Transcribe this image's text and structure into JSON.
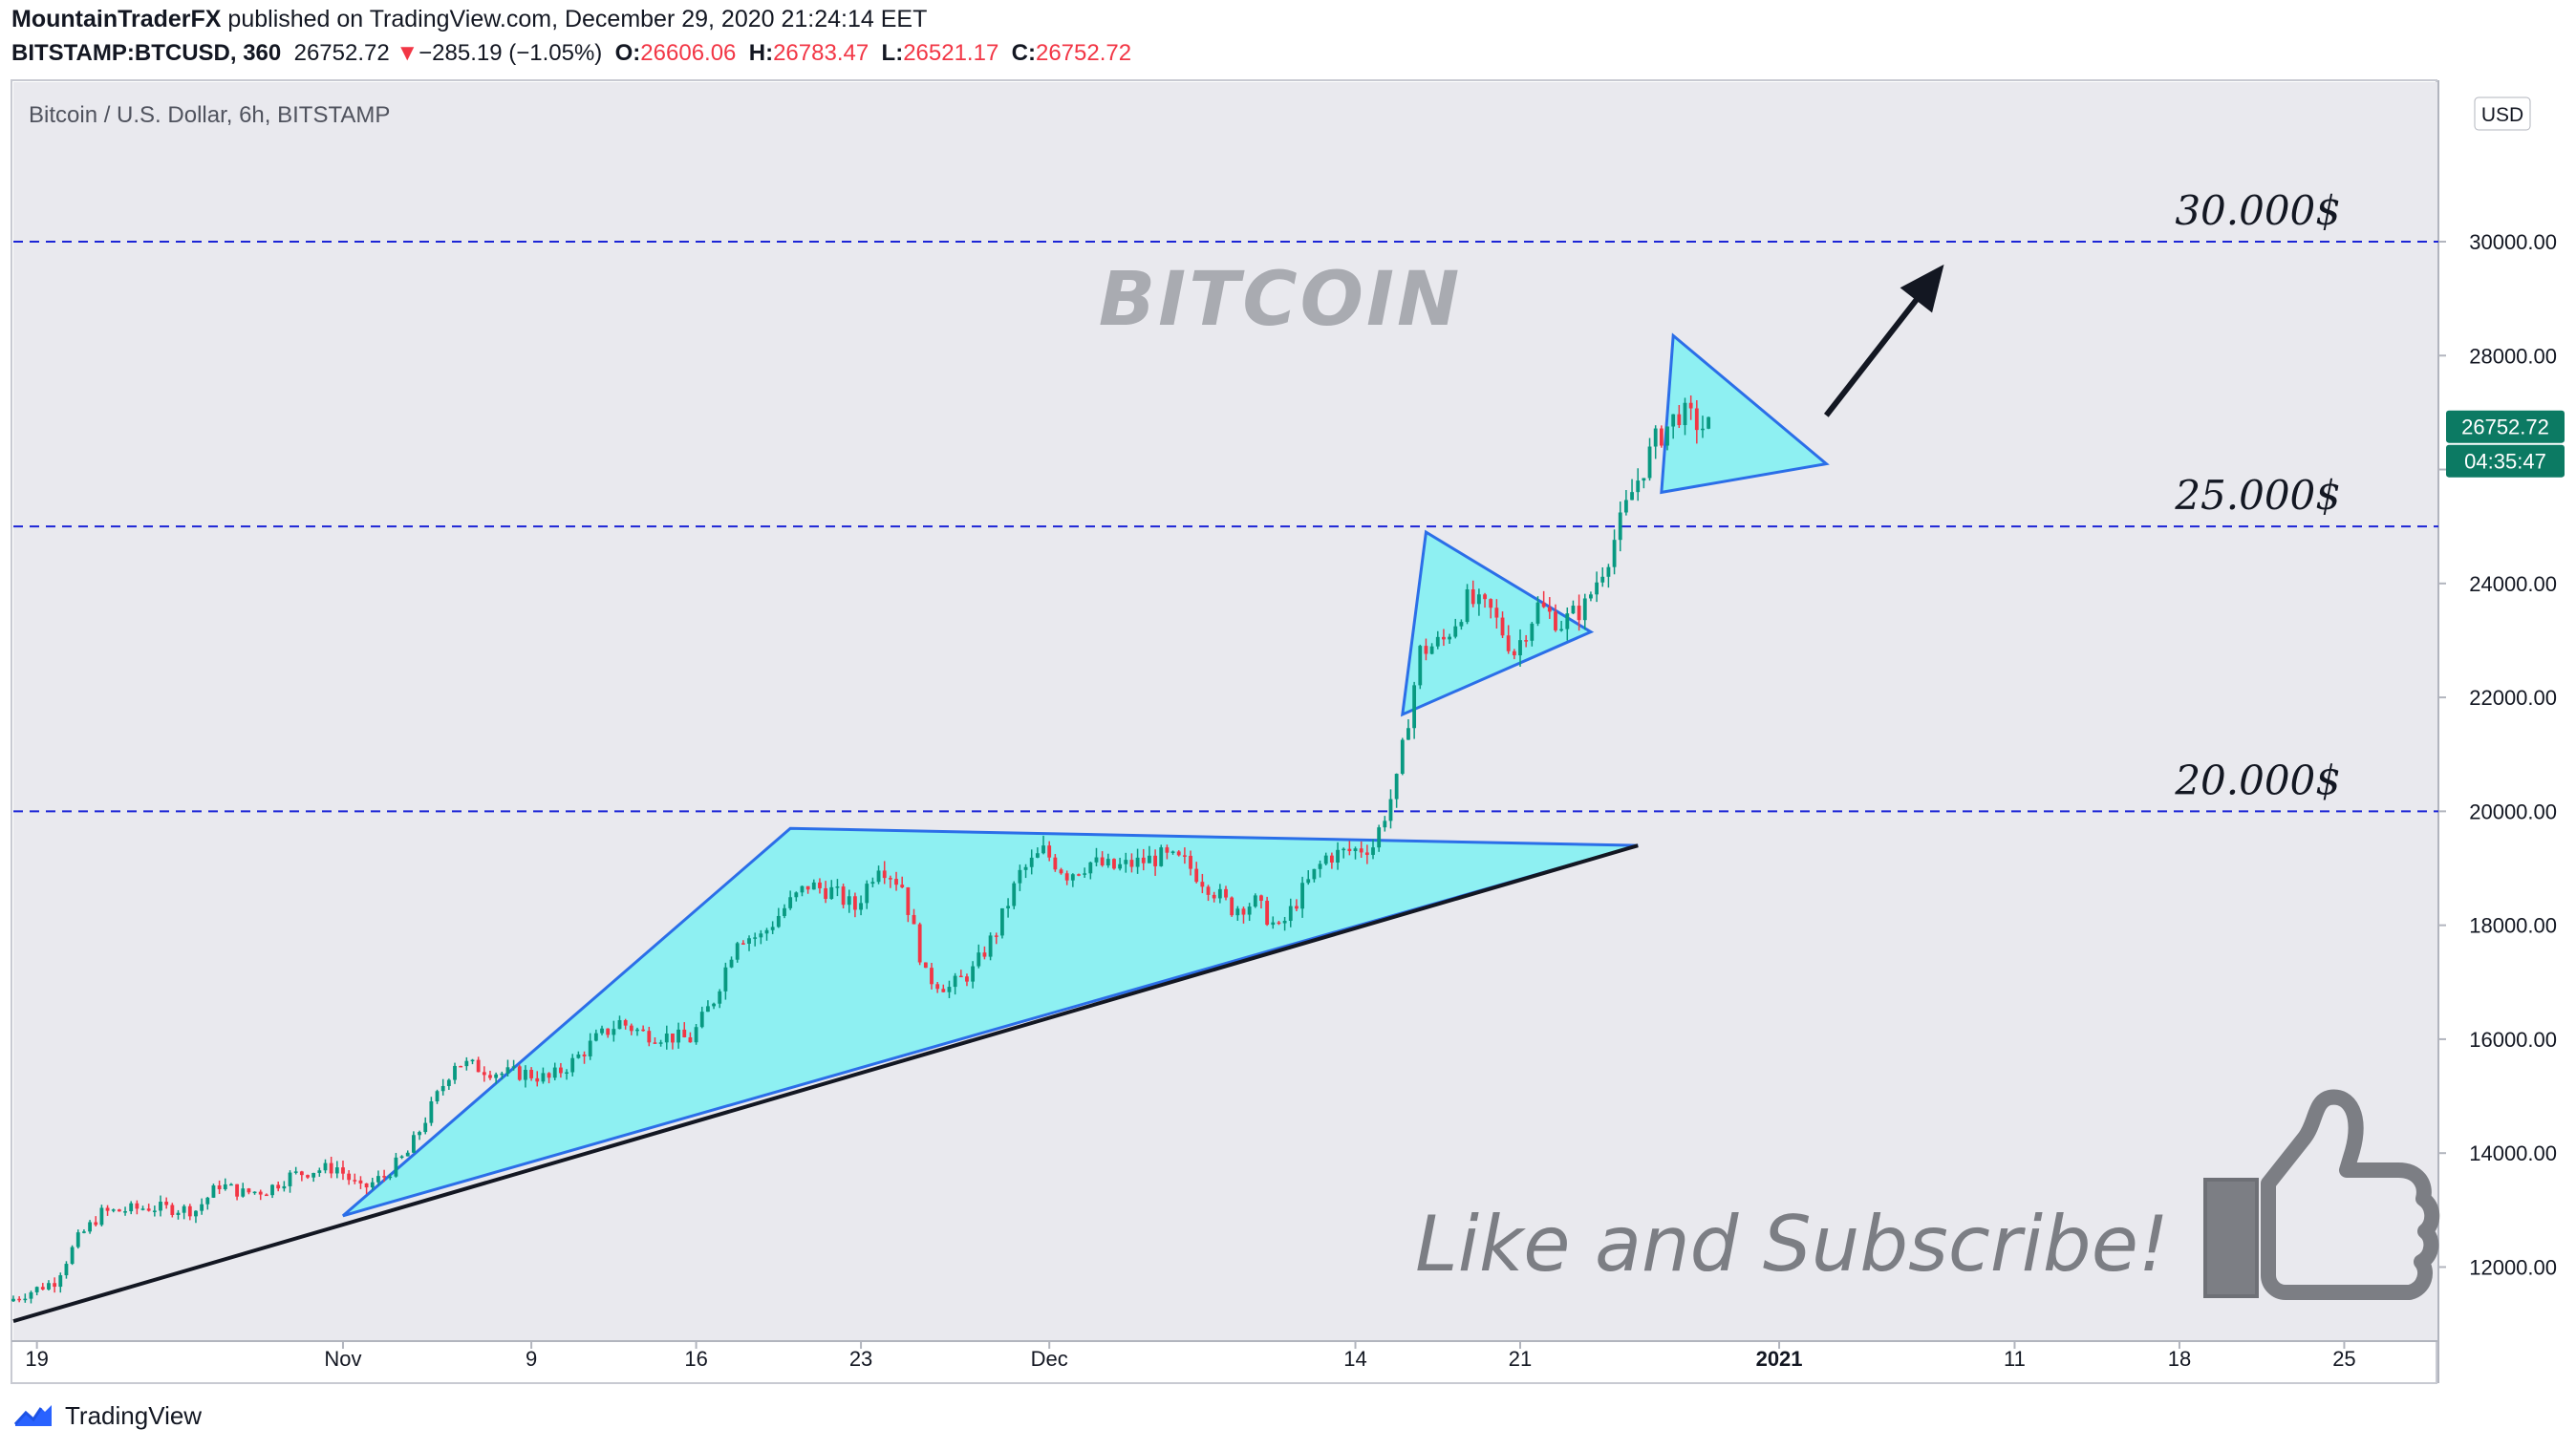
{
  "header": {
    "author": "MountainTraderFX",
    "published_text": "published on TradingView.com, December 29, 2020 21:24:14 EET",
    "symbol": "BITSTAMP:BTCUSD, 360",
    "last": "26752.72",
    "change_arrow": "▼",
    "change": "−285.19 (−1.05%)",
    "open_label": "O:",
    "open": "26606.06",
    "high_label": "H:",
    "high": "26783.47",
    "low_label": "L:",
    "low": "26521.17",
    "close_label": "C:",
    "close": "26752.72"
  },
  "footer": {
    "brand": "TradingView",
    "logo_icon": "tradingview-logo-icon"
  },
  "colors": {
    "up": "#089981",
    "down": "#f23645",
    "level_line": "#1c25d6",
    "triangle_fill": "#8ef0f2",
    "triangle_stroke": "#2b6ee8",
    "panel_bg": "#e9e9ee"
  },
  "chart_data": {
    "type": "candlestick",
    "title": "Bitcoin / U.S. Dollar, 6h, BITSTAMP",
    "currency": "USD",
    "watermark": "BITCOIN",
    "caption": "Like and Subscribe!",
    "caption_icon": "thumbs-up-icon",
    "ylim": [
      10700,
      32800
    ],
    "y_ticks": [
      12000,
      14000,
      16000,
      18000,
      20000,
      22000,
      24000,
      26000,
      28000,
      30000
    ],
    "y_tick_labels": [
      "12000.00",
      "14000.00",
      "16000.00",
      "18000.00",
      "20000.00",
      "22000.00",
      "24000.00",
      "26000.00",
      "28000.00",
      "30000.00"
    ],
    "x_range": [
      "2020-10-18",
      "2021-01-29"
    ],
    "x_ticks": [
      {
        "date": "2020-10-19",
        "label": "19"
      },
      {
        "date": "2020-11-01",
        "label": "Nov"
      },
      {
        "date": "2020-11-09",
        "label": "9"
      },
      {
        "date": "2020-11-16",
        "label": "16"
      },
      {
        "date": "2020-11-23",
        "label": "23"
      },
      {
        "date": "2020-12-01",
        "label": "Dec"
      },
      {
        "date": "2020-12-14",
        "label": "14"
      },
      {
        "date": "2020-12-21",
        "label": "21"
      },
      {
        "date": "2021-01-01",
        "label": "2021"
      },
      {
        "date": "2021-01-11",
        "label": "11"
      },
      {
        "date": "2021-01-18",
        "label": "18"
      },
      {
        "date": "2021-01-25",
        "label": "25"
      }
    ],
    "levels": [
      {
        "price": 30000,
        "label": "30.000$"
      },
      {
        "price": 25000,
        "label": "25.000$"
      },
      {
        "price": 20000,
        "label": "20.000$"
      }
    ],
    "price_badge": "26752.72",
    "countdown_badge": "04:35:47",
    "price_path": [
      [
        "2020-10-18",
        11400
      ],
      [
        "2020-10-20",
        11750
      ],
      [
        "2020-10-21",
        12500
      ],
      [
        "2020-10-22",
        12950
      ],
      [
        "2020-10-24",
        13050
      ],
      [
        "2020-10-26",
        13000
      ],
      [
        "2020-10-27",
        13450
      ],
      [
        "2020-10-28",
        13300
      ],
      [
        "2020-10-29",
        13350
      ],
      [
        "2020-10-30",
        13600
      ],
      [
        "2020-10-31",
        13700
      ],
      [
        "2020-11-01",
        13750
      ],
      [
        "2020-11-02",
        13350
      ],
      [
        "2020-11-03",
        13600
      ],
      [
        "2020-11-04",
        14000
      ],
      [
        "2020-11-05",
        14800
      ],
      [
        "2020-11-06",
        15600
      ],
      [
        "2020-11-07",
        15500
      ],
      [
        "2020-11-08",
        15400
      ],
      [
        "2020-11-09",
        15400
      ],
      [
        "2020-11-10",
        15300
      ],
      [
        "2020-11-11",
        15600
      ],
      [
        "2020-11-12",
        16000
      ],
      [
        "2020-11-13",
        16300
      ],
      [
        "2020-11-14",
        16100
      ],
      [
        "2020-11-16",
        16000
      ],
      [
        "2020-11-17",
        16700
      ],
      [
        "2020-11-18",
        17800
      ],
      [
        "2020-11-19",
        17800
      ],
      [
        "2020-11-20",
        18300
      ],
      [
        "2020-11-21",
        18700
      ],
      [
        "2020-11-22",
        18600
      ],
      [
        "2020-11-23",
        18300
      ],
      [
        "2020-11-24",
        19100
      ],
      [
        "2020-11-25",
        18700
      ],
      [
        "2020-11-26",
        17100
      ],
      [
        "2020-11-27",
        16900
      ],
      [
        "2020-11-28",
        17200
      ],
      [
        "2020-11-29",
        17900
      ],
      [
        "2020-11-30",
        18900
      ],
      [
        "2020-12-01",
        19300
      ],
      [
        "2020-12-02",
        18900
      ],
      [
        "2020-12-03",
        19100
      ],
      [
        "2020-12-04",
        19000
      ],
      [
        "2020-12-05",
        19100
      ],
      [
        "2020-12-06",
        19200
      ],
      [
        "2020-12-07",
        19100
      ],
      [
        "2020-12-08",
        18700
      ],
      [
        "2020-12-09",
        18300
      ],
      [
        "2020-12-10",
        18400
      ],
      [
        "2020-12-11",
        17900
      ],
      [
        "2020-12-12",
        18600
      ],
      [
        "2020-12-13",
        19200
      ],
      [
        "2020-12-14",
        19300
      ],
      [
        "2020-12-15",
        19400
      ],
      [
        "2020-12-16",
        20500
      ],
      [
        "2020-12-17",
        22800
      ],
      [
        "2020-12-18",
        23000
      ],
      [
        "2020-12-19",
        23700
      ],
      [
        "2020-12-20",
        23500
      ],
      [
        "2020-12-21",
        22800
      ],
      [
        "2020-12-22",
        23600
      ],
      [
        "2020-12-23",
        23300
      ],
      [
        "2020-12-24",
        23600
      ],
      [
        "2020-12-25",
        24500
      ],
      [
        "2020-12-26",
        25600
      ],
      [
        "2020-12-27",
        26500
      ],
      [
        "2020-12-28",
        27000
      ],
      [
        "2020-12-29",
        26752
      ]
    ]
  }
}
